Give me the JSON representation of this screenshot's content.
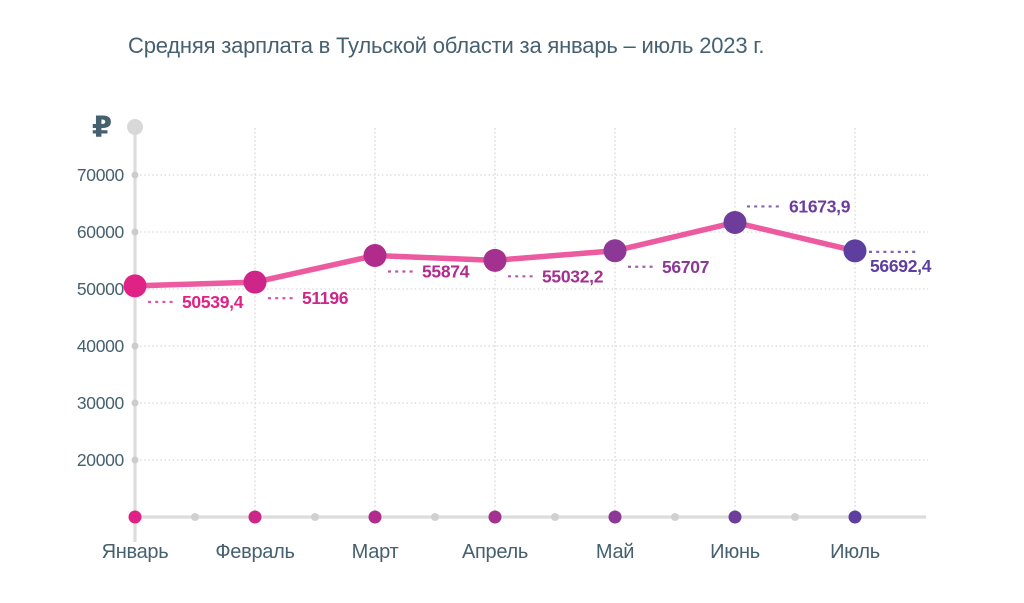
{
  "title": "Средняя зарплата в Тульской области за январь – июль 2023 г.",
  "chart_data": {
    "type": "line",
    "title": "Средняя зарплата в Тульской области за январь – июль 2023 г.",
    "categories": [
      "Январь",
      "Февраль",
      "Март",
      "Апрель",
      "Май",
      "Июнь",
      "Июль"
    ],
    "values": [
      50539.4,
      51196,
      55874,
      55032.2,
      56707,
      61673.9,
      56692.4
    ],
    "value_labels": [
      "50539,4",
      "51196",
      "55874",
      "55032,2",
      "56707",
      "61673,9",
      "56692,4"
    ],
    "label_placements": [
      "below",
      "below",
      "below",
      "below",
      "below",
      "above",
      "right-below"
    ],
    "point_colors": [
      "#e02286",
      "#cd2688",
      "#b12b8c",
      "#a23190",
      "#8b3897",
      "#6e3d9b",
      "#5e3fa0"
    ],
    "line_color": "#ec5a9f",
    "xlabel": "",
    "ylabel": "₽",
    "yticks": [
      70000,
      60000,
      50000,
      40000,
      30000,
      20000
    ],
    "ylim": [
      10000,
      78000
    ],
    "grid": true,
    "legend": null
  },
  "colors": {
    "text": "#45606f",
    "axis": "#dcdcdc",
    "grid": "#d6d6d6",
    "tick_dot": "#cccccc",
    "axis_top_dot": "#d8d8d8",
    "mid_dot": "#d0d0d0",
    "background": "#ffffff"
  }
}
